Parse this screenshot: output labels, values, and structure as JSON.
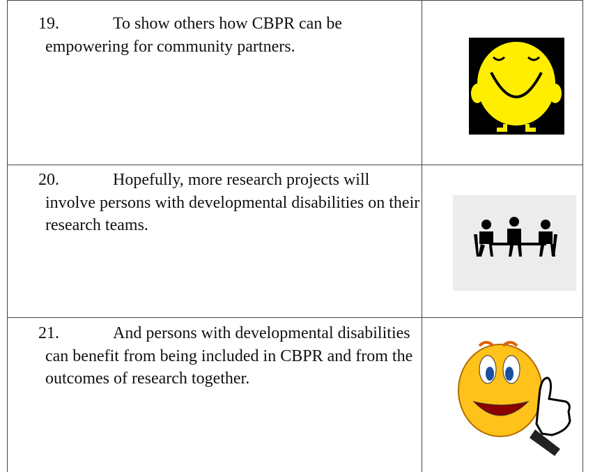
{
  "table": {
    "rows": [
      {
        "number": "19.",
        "text": "To show others how CBPR can be empowering for community partners."
      },
      {
        "number": "20.",
        "text": "Hopefully, more research projects will involve persons with developmental disabilities on their research teams."
      },
      {
        "number": "21.",
        "text": "And persons with developmental disabilities can benefit from being included in CBPR and from the outcomes of research together."
      }
    ]
  }
}
